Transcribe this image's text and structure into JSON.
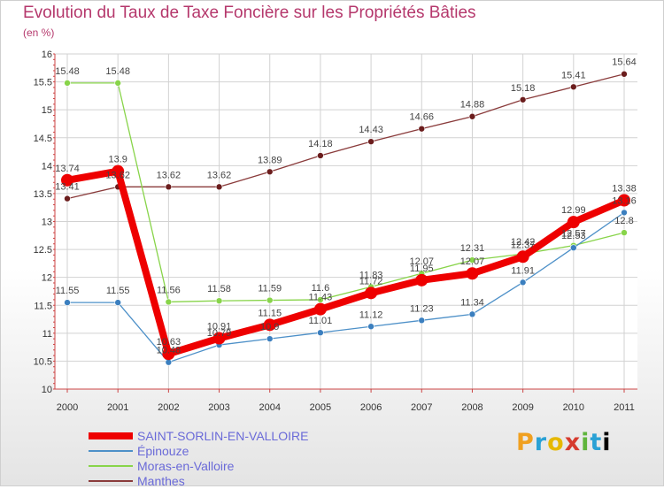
{
  "chart_data": {
    "type": "line",
    "title": "Evolution du Taux de Taxe Foncière sur les Propriétés Bâties",
    "subtitle": "(en %)",
    "xlabel": "",
    "ylabel": "",
    "ylim": [
      10,
      16
    ],
    "yticks": [
      "10",
      "10.5",
      "11",
      "11.5",
      "12",
      "12.5",
      "13",
      "13.5",
      "14",
      "14.5",
      "15",
      "15.5",
      "16"
    ],
    "categories": [
      "2000",
      "2001",
      "2002",
      "2003",
      "2004",
      "2005",
      "2006",
      "2007",
      "2008",
      "2009",
      "2010",
      "2011"
    ],
    "grid": true,
    "series": [
      {
        "name": "SAINT-SORLIN-EN-VALLOIRE",
        "color": "#ee0000",
        "values": [
          13.74,
          13.9,
          10.63,
          10.91,
          11.15,
          11.43,
          11.72,
          11.95,
          12.07,
          12.37,
          12.99,
          13.38
        ],
        "labels": [
          "13.74",
          "13.9",
          "10.63",
          "10.91",
          "11.15",
          "11.43",
          "11.72",
          "11.95",
          "12.07",
          "12.37",
          "12.99",
          "13.38"
        ]
      },
      {
        "name": "Épinouze",
        "color": "#4d90c8",
        "values": [
          11.55,
          11.55,
          10.48,
          10.79,
          10.9,
          11.01,
          11.12,
          11.23,
          11.34,
          11.91,
          12.53,
          13.16
        ],
        "labels": [
          "11.55",
          "11.55",
          "10.48",
          "10.79",
          "10.9",
          "11.01",
          "11.12",
          "11.23",
          "11.34",
          "11.91",
          "12.53",
          "13.16"
        ]
      },
      {
        "name": "Moras-en-Valloire",
        "color": "#88d44a",
        "values": [
          15.48,
          15.48,
          11.56,
          11.58,
          11.59,
          11.6,
          11.83,
          12.07,
          12.31,
          12.42,
          12.57,
          12.8
        ],
        "labels": [
          "15.48",
          "15.48",
          "11.56",
          "11.58",
          "11.59",
          "11.6",
          "11.83",
          "12.07",
          "12.31",
          "12.42",
          "12.57",
          "12.8"
        ]
      },
      {
        "name": "Manthes",
        "color": "#8a3b3b",
        "values": [
          13.41,
          13.62,
          13.62,
          13.62,
          13.89,
          14.18,
          14.43,
          14.66,
          14.88,
          15.18,
          15.41,
          15.64
        ],
        "labels": [
          "13.41",
          "13.62",
          "13.62",
          "13.62",
          "13.89",
          "14.18",
          "14.43",
          "14.66",
          "14.88",
          "15.18",
          "15.41",
          "15.64"
        ]
      }
    ]
  },
  "legend": {
    "items": [
      {
        "label": "SAINT-SORLIN-EN-VALLOIRE",
        "color": "#ee0000"
      },
      {
        "label": "Épinouze",
        "color": "#4d90c8"
      },
      {
        "label": "Moras-en-Valloire",
        "color": "#88d44a"
      },
      {
        "label": "Manthes",
        "color": "#8a3b3b"
      }
    ]
  },
  "logo": {
    "letters": [
      "P",
      "r",
      "o",
      "x",
      "i",
      "t",
      "i"
    ]
  }
}
